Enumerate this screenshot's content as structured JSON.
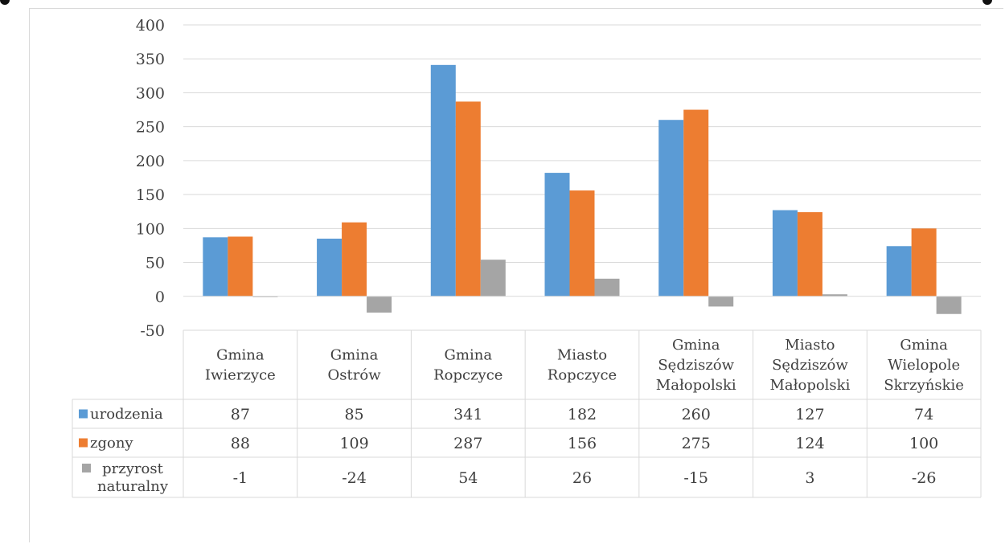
{
  "chart_data": {
    "type": "bar",
    "title": "",
    "xlabel": "",
    "ylabel": "",
    "ylim": [
      -50,
      400
    ],
    "yticks": [
      400,
      350,
      300,
      250,
      200,
      150,
      100,
      50,
      0,
      -50
    ],
    "grid": true,
    "legend": "data-table",
    "categories": [
      [
        "Gmina",
        "Iwierzyce"
      ],
      [
        "Gmina",
        "Ostrów"
      ],
      [
        "Gmina",
        "Ropczyce"
      ],
      [
        "Miasto",
        "Ropczyce"
      ],
      [
        "Gmina",
        "Sędziszów",
        "Małopolski"
      ],
      [
        "Miasto",
        "Sędziszów",
        "Małopolski"
      ],
      [
        "Gmina",
        "Wielopole",
        "Skrzyńskie"
      ]
    ],
    "series": [
      {
        "name": "urodzenia",
        "name_lines": [
          "urodzenia"
        ],
        "color": "#5b9bd5",
        "values": [
          87,
          85,
          341,
          182,
          260,
          127,
          74
        ]
      },
      {
        "name": "zgony",
        "name_lines": [
          "zgony"
        ],
        "color": "#ed7d31",
        "values": [
          88,
          109,
          287,
          156,
          275,
          124,
          100
        ]
      },
      {
        "name": "przyrost naturalny",
        "name_lines": [
          "przyrost",
          "naturalny"
        ],
        "color": "#a5a5a5",
        "values": [
          -1,
          -24,
          54,
          26,
          -15,
          3,
          -26
        ]
      }
    ]
  }
}
